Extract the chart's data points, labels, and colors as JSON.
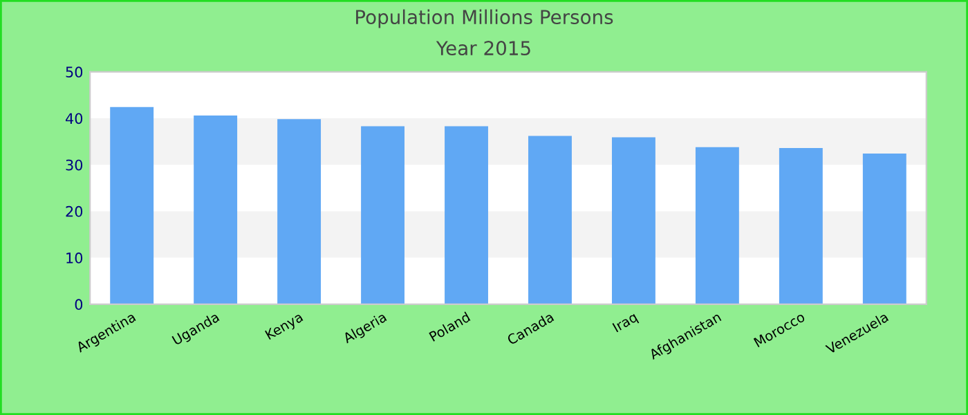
{
  "chart_data": {
    "type": "bar",
    "title": "Population Millions Persons",
    "subtitle": "Year 2015",
    "categories": [
      "Argentina",
      "Uganda",
      "Kenya",
      "Algeria",
      "Poland",
      "Canada",
      "Iraq",
      "Afghanistan",
      "Morocco",
      "Venezuela"
    ],
    "values": [
      42.4,
      40.6,
      39.8,
      38.3,
      38.3,
      36.2,
      35.9,
      33.8,
      33.6,
      32.4
    ],
    "color": "#60a8f4",
    "ylim": [
      0,
      50
    ],
    "yticks": [
      0,
      10,
      20,
      30,
      40,
      50
    ],
    "bands": [
      {
        "axis": "y",
        "from": 10,
        "to": 20,
        "color": "#f3f3f3"
      },
      {
        "axis": "y",
        "from": 30,
        "to": 40,
        "color": "#f3f3f3"
      }
    ]
  }
}
